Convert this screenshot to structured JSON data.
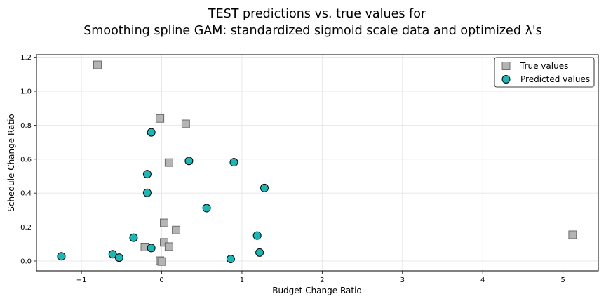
{
  "chart_data": {
    "type": "scatter",
    "title_line1": "TEST predictions vs. true values for",
    "title_line2": "Smoothing spline GAM: standardized sigmoid scale data and optimized λ's",
    "xlabel": "Budget Change Ratio",
    "ylabel": "Schedule Change Ratio",
    "xlim": [
      -1.56,
      5.44
    ],
    "ylim": [
      -0.058,
      1.215
    ],
    "x_ticks": [
      -1,
      0,
      1,
      2,
      3,
      4,
      5
    ],
    "y_ticks": [
      0.0,
      0.2,
      0.4,
      0.6,
      0.8,
      1.0,
      1.2
    ],
    "x_tick_labels": [
      "−1",
      "0",
      "1",
      "2",
      "3",
      "4",
      "5"
    ],
    "y_tick_labels": [
      "0.0",
      "0.2",
      "0.4",
      "0.6",
      "0.8",
      "1.0",
      "1.2"
    ],
    "grid": true,
    "legend_position": "top-right",
    "series": [
      {
        "name": "True values",
        "marker": "square",
        "color": "#b4b4b4",
        "points": [
          {
            "x": -0.8,
            "y": 1.155
          },
          {
            "x": -0.02,
            "y": 0.84
          },
          {
            "x": 0.3,
            "y": 0.808
          },
          {
            "x": 0.09,
            "y": 0.58
          },
          {
            "x": 0.03,
            "y": 0.225
          },
          {
            "x": 0.18,
            "y": 0.183
          },
          {
            "x": 0.03,
            "y": 0.11
          },
          {
            "x": -0.21,
            "y": 0.083
          },
          {
            "x": 0.09,
            "y": 0.085
          },
          {
            "x": -0.02,
            "y": 0.002
          },
          {
            "x": 0.0,
            "y": -0.003
          },
          {
            "x": 5.12,
            "y": 0.155
          }
        ]
      },
      {
        "name": "Predicted values",
        "marker": "circle",
        "color": "#16b8b8",
        "points": [
          {
            "x": -0.13,
            "y": 0.758
          },
          {
            "x": 0.34,
            "y": 0.59
          },
          {
            "x": 0.9,
            "y": 0.582
          },
          {
            "x": -0.18,
            "y": 0.512
          },
          {
            "x": -0.18,
            "y": 0.402
          },
          {
            "x": 1.28,
            "y": 0.43
          },
          {
            "x": 0.56,
            "y": 0.312
          },
          {
            "x": -0.35,
            "y": 0.138
          },
          {
            "x": 1.19,
            "y": 0.15
          },
          {
            "x": -0.13,
            "y": 0.077
          },
          {
            "x": -0.61,
            "y": 0.04
          },
          {
            "x": -0.53,
            "y": 0.02
          },
          {
            "x": -1.25,
            "y": 0.028
          },
          {
            "x": 1.22,
            "y": 0.05
          },
          {
            "x": 0.86,
            "y": 0.012
          }
        ]
      }
    ]
  }
}
